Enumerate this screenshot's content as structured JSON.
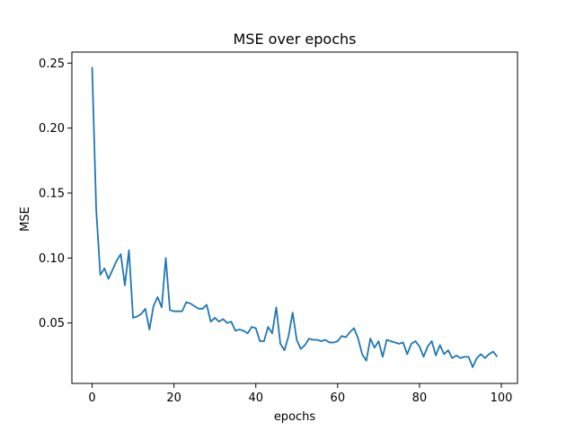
{
  "chart_data": {
    "type": "line",
    "title": "MSE over epochs",
    "xlabel": "epochs",
    "ylabel": "MSE",
    "xlim": [
      -4.95,
      103.95
    ],
    "ylim": [
      0.0035,
      0.2585
    ],
    "xticks": [
      0,
      20,
      40,
      60,
      80,
      100
    ],
    "xtick_labels": [
      "0",
      "20",
      "40",
      "60",
      "80",
      "100"
    ],
    "yticks": [
      0.05,
      0.1,
      0.15,
      0.2,
      0.25
    ],
    "ytick_labels": [
      "0.05",
      "0.10",
      "0.15",
      "0.20",
      "0.25"
    ],
    "grid": false,
    "series": [
      {
        "color": "#1f77b4",
        "x": [
          0,
          1,
          2,
          3,
          4,
          5,
          6,
          7,
          8,
          9,
          10,
          11,
          12,
          13,
          14,
          15,
          16,
          17,
          18,
          19,
          20,
          21,
          22,
          23,
          24,
          25,
          26,
          27,
          28,
          29,
          30,
          31,
          32,
          33,
          34,
          35,
          36,
          37,
          38,
          39,
          40,
          41,
          42,
          43,
          44,
          45,
          46,
          47,
          48,
          49,
          50,
          51,
          52,
          53,
          54,
          55,
          56,
          57,
          58,
          59,
          60,
          61,
          62,
          63,
          64,
          65,
          66,
          67,
          68,
          69,
          70,
          71,
          72,
          73,
          74,
          75,
          76,
          77,
          78,
          79,
          80,
          81,
          82,
          83,
          84,
          85,
          86,
          87,
          88,
          89,
          90,
          91,
          92,
          93,
          94,
          95,
          96,
          97,
          98,
          99
        ],
        "y": [
          0.247,
          0.137,
          0.087,
          0.092,
          0.084,
          0.091,
          0.098,
          0.103,
          0.079,
          0.106,
          0.054,
          0.055,
          0.057,
          0.061,
          0.045,
          0.063,
          0.07,
          0.062,
          0.1,
          0.06,
          0.059,
          0.059,
          0.059,
          0.066,
          0.065,
          0.063,
          0.061,
          0.061,
          0.064,
          0.051,
          0.054,
          0.051,
          0.053,
          0.05,
          0.051,
          0.044,
          0.045,
          0.044,
          0.042,
          0.047,
          0.046,
          0.036,
          0.036,
          0.047,
          0.042,
          0.062,
          0.034,
          0.029,
          0.04,
          0.058,
          0.037,
          0.03,
          0.033,
          0.038,
          0.037,
          0.037,
          0.036,
          0.037,
          0.035,
          0.035,
          0.036,
          0.04,
          0.039,
          0.043,
          0.046,
          0.038,
          0.026,
          0.021,
          0.038,
          0.031,
          0.036,
          0.024,
          0.037,
          0.036,
          0.035,
          0.034,
          0.035,
          0.026,
          0.034,
          0.036,
          0.032,
          0.024,
          0.032,
          0.036,
          0.025,
          0.033,
          0.026,
          0.029,
          0.023,
          0.025,
          0.023,
          0.024,
          0.024,
          0.016,
          0.023,
          0.026,
          0.023,
          0.026,
          0.028,
          0.024
        ]
      }
    ]
  }
}
